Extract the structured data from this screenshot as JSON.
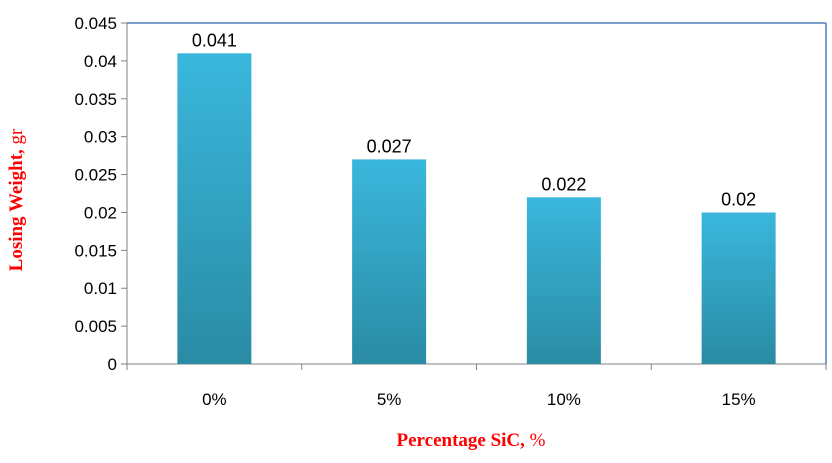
{
  "chart_data": {
    "type": "bar",
    "categories": [
      "0%",
      "5%",
      "10%",
      "15%"
    ],
    "values": [
      0.041,
      0.027,
      0.022,
      0.02
    ],
    "data_labels": [
      "0.041",
      "0.027",
      "0.022",
      "0.02"
    ],
    "y_ticks": [
      "0",
      "0.005",
      "0.01",
      "0.015",
      "0.02",
      "0.025",
      "0.03",
      "0.035",
      "0.04",
      "0.045"
    ],
    "ylim": [
      0,
      0.045
    ],
    "xlabel": {
      "bold": "Percentage SiC,",
      "unit": " %"
    },
    "ylabel": {
      "bold": "Losing Weight,",
      "unit": " gr"
    },
    "grid": false,
    "colors": {
      "bar_top": "#3AB7DD",
      "bar_bottom": "#2A8BA4",
      "axis_title": "#FF0000",
      "frame": "#4F81BD",
      "axis": "#808080"
    }
  }
}
